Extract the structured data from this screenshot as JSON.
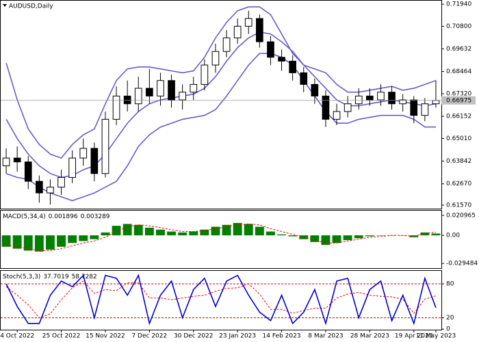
{
  "chart_data": [
    {
      "type": "candlestick",
      "title": "AUDUSD,Daily",
      "open": [
        0.636,
        0.64,
        0.638,
        0.628,
        0.622,
        0.625,
        0.63,
        0.64,
        0.645,
        0.632,
        0.66,
        0.672,
        0.668,
        0.676,
        0.672,
        0.68,
        0.67,
        0.674,
        0.678,
        0.688,
        0.695,
        0.702,
        0.708,
        0.712,
        0.7,
        0.692,
        0.69,
        0.684,
        0.678,
        0.672,
        0.66,
        0.664,
        0.668,
        0.672,
        0.67,
        0.674,
        0.668,
        0.67,
        0.662,
        0.668
      ],
      "high": [
        0.645,
        0.646,
        0.641,
        0.631,
        0.629,
        0.634,
        0.644,
        0.65,
        0.648,
        0.664,
        0.677,
        0.68,
        0.682,
        0.686,
        0.684,
        0.683,
        0.678,
        0.682,
        0.691,
        0.699,
        0.706,
        0.712,
        0.716,
        0.714,
        0.703,
        0.696,
        0.693,
        0.687,
        0.681,
        0.675,
        0.668,
        0.672,
        0.676,
        0.676,
        0.678,
        0.677,
        0.673,
        0.672,
        0.671,
        0.68
      ],
      "low": [
        0.632,
        0.633,
        0.624,
        0.617,
        0.616,
        0.621,
        0.627,
        0.636,
        0.628,
        0.63,
        0.657,
        0.664,
        0.664,
        0.668,
        0.667,
        0.666,
        0.665,
        0.67,
        0.675,
        0.684,
        0.692,
        0.699,
        0.704,
        0.697,
        0.688,
        0.685,
        0.68,
        0.674,
        0.668,
        0.656,
        0.657,
        0.661,
        0.665,
        0.667,
        0.667,
        0.665,
        0.664,
        0.658,
        0.659,
        0.666
      ],
      "close": [
        0.64,
        0.638,
        0.628,
        0.622,
        0.625,
        0.63,
        0.64,
        0.645,
        0.632,
        0.66,
        0.672,
        0.668,
        0.676,
        0.672,
        0.68,
        0.67,
        0.674,
        0.678,
        0.688,
        0.695,
        0.702,
        0.708,
        0.712,
        0.7,
        0.692,
        0.69,
        0.684,
        0.678,
        0.672,
        0.66,
        0.664,
        0.668,
        0.672,
        0.67,
        0.674,
        0.668,
        0.67,
        0.662,
        0.668,
        0.66975
      ],
      "up_color": "#ffffff",
      "down_color": "#000000",
      "color": "#000000",
      "series": [
        {
          "color": "#6a5acd",
          "values": [
            0.689,
            0.67,
            0.655,
            0.647,
            0.642,
            0.64,
            0.647,
            0.652,
            0.655,
            0.668,
            0.68,
            0.686,
            0.687,
            0.687,
            0.686,
            0.685,
            0.684,
            0.685,
            0.692,
            0.702,
            0.71,
            0.716,
            0.718,
            0.718,
            0.714,
            0.704,
            0.694,
            0.688,
            0.686,
            0.684,
            0.678,
            0.674,
            0.674,
            0.675,
            0.676,
            0.677,
            0.675,
            0.676,
            0.678,
            0.68
          ]
        },
        {
          "color": "#6a5acd",
          "values": [
            0.66,
            0.65,
            0.642,
            0.636,
            0.632,
            0.63,
            0.631,
            0.634,
            0.636,
            0.642,
            0.65,
            0.658,
            0.664,
            0.668,
            0.67,
            0.671,
            0.672,
            0.673,
            0.676,
            0.682,
            0.69,
            0.697,
            0.702,
            0.705,
            0.704,
            0.7,
            0.695,
            0.688,
            0.682,
            0.676,
            0.67,
            0.667,
            0.667,
            0.668,
            0.669,
            0.67,
            0.669,
            0.668,
            0.667,
            0.668
          ]
        },
        {
          "color": "#6a5acd",
          "values": [
            0.632,
            0.63,
            0.629,
            0.625,
            0.622,
            0.62,
            0.618,
            0.62,
            0.622,
            0.625,
            0.628,
            0.636,
            0.646,
            0.652,
            0.656,
            0.658,
            0.66,
            0.661,
            0.662,
            0.665,
            0.672,
            0.68,
            0.688,
            0.694,
            0.694,
            0.692,
            0.688,
            0.68,
            0.672,
            0.664,
            0.658,
            0.658,
            0.66,
            0.661,
            0.662,
            0.662,
            0.662,
            0.66,
            0.656,
            0.656
          ]
        }
      ],
      "last_price": 0.66975,
      "ylim": [
        0.6139,
        0.7212
      ],
      "yticks": [
        {
          "value": 0.7194,
          "label": "0.71940"
        },
        {
          "value": 0.708,
          "label": "0.70800"
        },
        0.69632,
        0.68464,
        {
          "value": 0.6732,
          "label": "0.67320"
        },
        0.66152,
        {
          "value": 0.6501,
          "label": "0.65010"
        },
        0.63842,
        {
          "value": 0.6267,
          "label": "0.62670"
        },
        {
          "value": 0.6157,
          "label": "0.61570"
        }
      ]
    },
    {
      "type": "macd",
      "title": "MACD(5,34,4)",
      "readouts": [
        0.001896,
        0.003289
      ],
      "series": [
        {
          "color": "#008000",
          "values": [
            -0.012,
            -0.014,
            -0.016,
            -0.017,
            -0.015,
            -0.012,
            -0.008,
            -0.006,
            -0.004,
            0.003,
            0.01,
            0.012,
            0.011,
            0.008,
            0.006,
            0.004,
            0.003,
            0.004,
            0.006,
            0.009,
            0.011,
            0.013,
            0.012,
            0.009,
            0.004,
            0.001,
            -0.001,
            -0.004,
            -0.007,
            -0.01,
            -0.008,
            -0.005,
            -0.003,
            -0.001,
            0.0,
            0.0,
            0.0,
            -0.002,
            0.003,
            0.001896
          ]
        },
        {
          "color": "#ff0000",
          "values": [
            -0.01,
            -0.012,
            -0.014,
            -0.016,
            -0.016,
            -0.014,
            -0.011,
            -0.008,
            -0.006,
            -0.002,
            0.004,
            0.009,
            0.011,
            0.01,
            0.008,
            0.006,
            0.004,
            0.004,
            0.005,
            0.007,
            0.009,
            0.011,
            0.012,
            0.011,
            0.007,
            0.004,
            0.001,
            -0.002,
            -0.005,
            -0.008,
            -0.008,
            -0.006,
            -0.004,
            -0.002,
            -0.001,
            0.0,
            0.0,
            -0.001,
            0.002,
            0.003289
          ]
        }
      ],
      "ylim": [
        -0.0344,
        0.0259
      ],
      "yticks": [
        0.020965,
        {
          "value": 0,
          "label": "0.00"
        },
        -0.029484
      ]
    },
    {
      "type": "stochastic",
      "title": "Stoch(5,3,3)",
      "readouts": [
        37.7019,
        58.7282
      ],
      "series": [
        {
          "color": "#0000cd",
          "values": [
            80,
            40,
            10,
            10,
            60,
            85,
            75,
            95,
            20,
            95,
            90,
            60,
            95,
            10,
            60,
            85,
            20,
            70,
            90,
            40,
            85,
            95,
            60,
            30,
            15,
            60,
            10,
            30,
            70,
            10,
            85,
            90,
            20,
            70,
            85,
            15,
            60,
            10,
            90,
            37.7019
          ]
        },
        {
          "color": "#ff0000",
          "values": [
            75,
            60,
            43,
            20,
            27,
            52,
            73,
            85,
            63,
            70,
            68,
            82,
            82,
            55,
            55,
            52,
            55,
            58,
            60,
            67,
            72,
            73,
            80,
            62,
            35,
            35,
            28,
            33,
            37,
            37,
            55,
            62,
            65,
            60,
            58,
            57,
            53,
            28,
            53,
            58.7282
          ]
        }
      ],
      "levels": [
        80,
        20
      ],
      "level_color": "#cc0000",
      "ylim": [
        -1,
        103
      ],
      "yticks": [
        80,
        20,
        0
      ],
      "categories": [
        null,
        "4 Oct 2022",
        null,
        null,
        null,
        "25 Oct 2022",
        null,
        null,
        null,
        "15 Nov 2022",
        null,
        null,
        null,
        "7 Dec 2022",
        null,
        null,
        null,
        "30 Dec 2022",
        null,
        null,
        null,
        "23 Jan 2023",
        null,
        null,
        null,
        "14 Feb 2023",
        null,
        null,
        null,
        "8 Mar 2023",
        null,
        null,
        null,
        "28 Mar 2023",
        null,
        null,
        null,
        "19 Apr 2023",
        null,
        "11 May 2023"
      ]
    }
  ]
}
